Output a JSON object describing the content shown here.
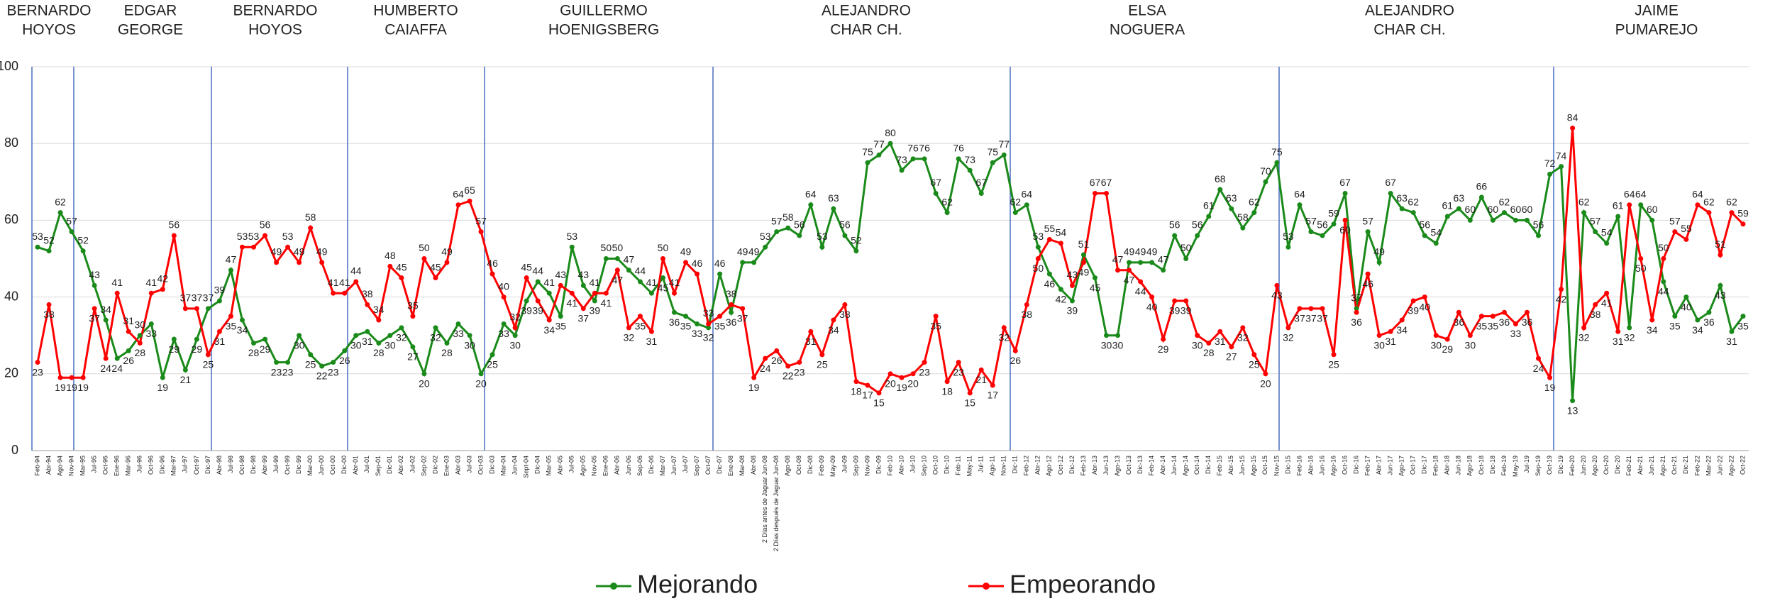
{
  "chart_data": {
    "type": "line",
    "periods": [
      [
        "BERNARDO",
        "HOYOS"
      ],
      [
        "EDGAR",
        "GEORGE"
      ],
      [
        "BERNARDO",
        "HOYOS"
      ],
      [
        "HUMBERTO",
        "CAIAFFA"
      ],
      [
        "GUILLERMO",
        "HOENIGSBERG"
      ],
      [
        "ALEJANDRO",
        "CHAR CH."
      ],
      [
        "ELSA",
        "NOGUERA"
      ],
      [
        "ALEJANDRO",
        "CHAR CH."
      ],
      [
        "JAIME",
        "PUMAREJO"
      ]
    ],
    "categories": [
      "Feb-94",
      "Abr-94",
      "Ago-94",
      "Nov-94",
      "Mar-95",
      "Jul-95",
      "Oct-95",
      "Ene-96",
      "Mar-96",
      "Jul-96",
      "Oct-96",
      "Dic-96",
      "Mar-97",
      "Jul-97",
      "Oct-97",
      "Dic-97",
      "Abr-98",
      "Jul-98",
      "Oct-98",
      "Dic-98",
      "Abr-99",
      "Jul-99",
      "Oct-99",
      "Dic-99",
      "Mar-00",
      "Jun-00",
      "Oct-00",
      "Dic-00",
      "Abr-01",
      "Jul-01",
      "Sep-01",
      "Dic-01",
      "Abr-02",
      "Jul-02",
      "Sep-02",
      "Dic-02",
      "Ene-03",
      "Abr-03",
      "Jul-03",
      "Oct-03",
      "Dic-03",
      "Mar-04",
      "Jun-04",
      "Sept-04",
      "Dic-04",
      "Mar-05",
      "Abr-05",
      "Jul-05",
      "Ago-05",
      "Nov-05",
      "Ene-06",
      "Abr-06",
      "Jun-06",
      "Sep-06",
      "Dic-06",
      "Mar-07",
      "Jun-07",
      "Jul-07",
      "Sep-07",
      "Oct-07",
      "Dic-07",
      "Ene-08",
      "Mar-08",
      "Abr-08",
      "2 Días antes de Jaguar Jun-08",
      "2 Días después de Jaguar Jun-08",
      "Ago-08",
      "Oct-08",
      "Dic-08",
      "Feb-09",
      "May-09",
      "Jul-09",
      "Sep-09",
      "Nov-09",
      "Dic-09",
      "Feb-10",
      "Abr-10",
      "Jul-10",
      "Sep-10",
      "Oct-10",
      "Dic-10",
      "Feb-11",
      "May-11",
      "Jul-11",
      "Ago-11",
      "Nov-11",
      "Dic-11",
      "Feb-12",
      "Abr-12",
      "Ago-12",
      "Oct-12",
      "Dic-12",
      "Feb-13",
      "Abr-13",
      "Jun-13",
      "Ago-13",
      "Oct-13",
      "Dic-13",
      "Feb-14",
      "Abr-14",
      "Jun-14",
      "Ago-14",
      "Oct-14",
      "Dic-14",
      "Feb-15",
      "Abr-15",
      "Jun-15",
      "Ago-15",
      "Oct-15",
      "Nov-15",
      "Dic-15",
      "Feb-16",
      "Abr-16",
      "Jun-16",
      "Ago-16",
      "Oct-16",
      "Dic-16",
      "Feb-17",
      "Abr-17",
      "Jun-17",
      "Ago-17",
      "Oct-17",
      "Dic-17",
      "Feb-18",
      "Abr-18",
      "Jun-18",
      "Ago-18",
      "Oct-18",
      "Dic-18",
      "Feb-19",
      "May-19",
      "Jul-19",
      "Sep-19",
      "Oct-19",
      "Dic-19",
      "Feb-20",
      "Jun-20",
      "Ago-20",
      "Oct-20",
      "Dic-20",
      "Feb-21",
      "Abr-21",
      "Jun-21",
      "Ago-21",
      "Oct-21",
      "Dic-21",
      "Feb-22",
      "Mar-22",
      "Jun-22",
      "Ago-22",
      "Oct-22"
    ],
    "series": [
      {
        "name": "Mejorando",
        "color": "#1a8a1a",
        "values": [
          53,
          52,
          62,
          57,
          52,
          43,
          34,
          24,
          26,
          30,
          33,
          19,
          29,
          21,
          29,
          37,
          39,
          47,
          34,
          28,
          29,
          23,
          23,
          30,
          25,
          22,
          23,
          26,
          30,
          31,
          28,
          30,
          32,
          27,
          20,
          32,
          28,
          33,
          30,
          20,
          25,
          33,
          30,
          39,
          44,
          41,
          35,
          53,
          43,
          39,
          50,
          50,
          47,
          44,
          41,
          45,
          36,
          35,
          33,
          32,
          46,
          36,
          49,
          49,
          53,
          57,
          58,
          56,
          64,
          53,
          63,
          56,
          52,
          75,
          77,
          80,
          73,
          76,
          76,
          67,
          62,
          76,
          73,
          67,
          75,
          77,
          62,
          64,
          53,
          46,
          42,
          39,
          51,
          45,
          30,
          30,
          49,
          49,
          49,
          47,
          56,
          50,
          56,
          61,
          68,
          63,
          58,
          62,
          70,
          75,
          53,
          64,
          57,
          56,
          59,
          67,
          37,
          57,
          49,
          67,
          63,
          62,
          56,
          54,
          61,
          63,
          60,
          66,
          60,
          62,
          60,
          60,
          56,
          72,
          74,
          13,
          62,
          57,
          54,
          61,
          32,
          64,
          60,
          44,
          35,
          40,
          34,
          36,
          43,
          31,
          35
        ]
      },
      {
        "name": "Empeorando",
        "color": "#ff0000",
        "values": [
          23,
          38,
          19,
          19,
          19,
          37,
          24,
          41,
          31,
          28,
          41,
          42,
          56,
          37,
          37,
          25,
          31,
          35,
          53,
          53,
          56,
          49,
          53,
          49,
          58,
          49,
          41,
          41,
          44,
          38,
          34,
          48,
          45,
          35,
          50,
          45,
          49,
          64,
          65,
          57,
          46,
          40,
          32,
          45,
          39,
          34,
          43,
          41,
          37,
          41,
          41,
          47,
          32,
          35,
          31,
          50,
          41,
          49,
          46,
          33,
          35,
          38,
          37,
          19,
          24,
          26,
          22,
          23,
          31,
          25,
          34,
          38,
          18,
          17,
          15,
          20,
          19,
          20,
          23,
          35,
          18,
          23,
          15,
          21,
          17,
          32,
          26,
          38,
          50,
          55,
          54,
          43,
          49,
          67,
          67,
          47,
          47,
          44,
          40,
          29,
          39,
          39,
          30,
          28,
          31,
          27,
          32,
          25,
          20,
          43,
          32,
          37,
          37,
          37,
          25,
          60,
          36,
          46,
          30,
          31,
          34,
          39,
          40,
          30,
          29,
          36,
          30,
          35,
          35,
          36,
          33,
          36,
          24,
          19,
          42,
          84,
          32,
          38,
          41,
          31,
          64,
          50,
          34,
          50,
          57,
          55,
          64,
          62,
          51,
          62,
          59
        ]
      }
    ],
    "ylim": [
      0,
      100
    ],
    "yticks": [
      0,
      20,
      40,
      60,
      80,
      100
    ],
    "grid": true
  }
}
